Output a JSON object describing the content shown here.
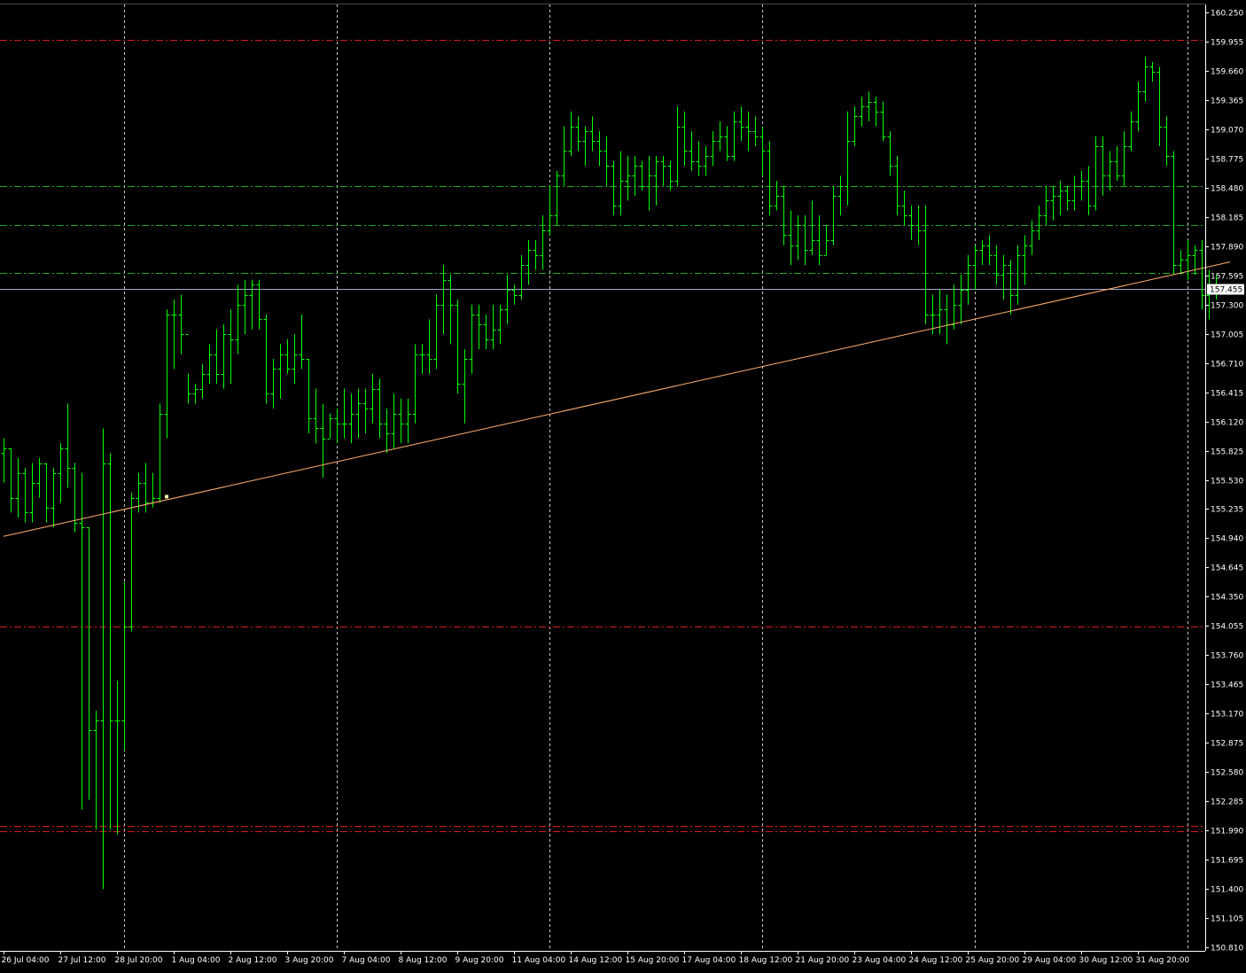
{
  "chart_data": {
    "type": "ohlc-bar",
    "colors": {
      "background": "#000000",
      "bar": "#00ff00",
      "axis": "#ffffff",
      "vertical_grid": "#c8c8c8",
      "support_resistance_red": "#d21e1e",
      "level_green": "#1eaa1e",
      "current_price_line": "#a0a8c8",
      "trendline": "#ffb070"
    },
    "ylim": [
      150.81,
      160.25
    ],
    "y_ticks": [
      "160.250",
      "159.955",
      "159.660",
      "159.365",
      "159.070",
      "158.775",
      "158.480",
      "158.185",
      "157.890",
      "157.595",
      "157.300",
      "157.005",
      "156.710",
      "156.415",
      "156.120",
      "155.825",
      "155.530",
      "155.235",
      "154.940",
      "154.645",
      "154.350",
      "154.055",
      "153.760",
      "153.465",
      "153.170",
      "152.875",
      "152.580",
      "152.285",
      "151.990",
      "151.695",
      "151.400",
      "151.105",
      "150.810"
    ],
    "x_ticks": [
      "26 Jul 04:00",
      "27 Jul 12:00",
      "28 Jul 20:00",
      "1 Aug 04:00",
      "2 Aug 12:00",
      "3 Aug 20:00",
      "7 Aug 04:00",
      "8 Aug 12:00",
      "9 Aug 20:00",
      "11 Aug 04:00",
      "14 Aug 12:00",
      "15 Aug 20:00",
      "17 Aug 04:00",
      "18 Aug 12:00",
      "21 Aug 20:00",
      "23 Aug 04:00",
      "24 Aug 12:00",
      "25 Aug 20:00",
      "29 Aug 04:00",
      "30 Aug 12:00",
      "31 Aug 20:00"
    ],
    "x_tick_bar_index": [
      0,
      8,
      16,
      24,
      32,
      40,
      48,
      56,
      64,
      72,
      80,
      88,
      96,
      104,
      112,
      120,
      128,
      136,
      144,
      152,
      160
    ],
    "vertical_grid_bar_index": [
      17,
      47,
      77,
      107,
      137,
      167
    ],
    "current_price": "157.455",
    "horizontal_levels": [
      {
        "price": 159.97,
        "style": "red-dashdot"
      },
      {
        "price": 154.05,
        "style": "red-dashdot"
      },
      {
        "price": 152.04,
        "style": "red-dashdot"
      },
      {
        "price": 151.98,
        "style": "red-dashdot"
      },
      {
        "price": 158.5,
        "style": "green-dashdot"
      },
      {
        "price": 158.1,
        "style": "green-dashdot"
      },
      {
        "price": 157.62,
        "style": "green-dashdot"
      }
    ],
    "trendline": {
      "start": {
        "bar": 0,
        "price": 154.96
      },
      "end": {
        "bar": 173,
        "price": 157.73
      },
      "anchor": {
        "bar": 23,
        "price": 155.36
      }
    },
    "bars": [
      [
        155.8,
        155.95,
        155.5,
        155.85
      ],
      [
        155.85,
        155.85,
        155.2,
        155.35
      ],
      [
        155.35,
        155.75,
        155.15,
        155.6
      ],
      [
        155.6,
        155.65,
        155.1,
        155.2
      ],
      [
        155.2,
        155.7,
        155.1,
        155.5
      ],
      [
        155.5,
        155.75,
        155.35,
        155.7
      ],
      [
        155.7,
        155.7,
        155.1,
        155.25
      ],
      [
        155.25,
        155.65,
        155.05,
        155.6
      ],
      [
        155.6,
        155.9,
        155.3,
        155.85
      ],
      [
        155.85,
        156.3,
        155.45,
        155.65
      ],
      [
        155.65,
        155.7,
        155.0,
        155.1
      ],
      [
        155.1,
        155.6,
        152.2,
        155.05
      ],
      [
        155.05,
        155.05,
        152.3,
        153.0
      ],
      [
        153.0,
        153.2,
        152.0,
        153.1
      ],
      [
        153.1,
        156.05,
        151.4,
        155.7
      ],
      [
        155.7,
        155.8,
        152.0,
        153.1
      ],
      [
        153.1,
        153.5,
        151.95,
        153.1
      ],
      [
        153.1,
        154.5,
        152.8,
        154.05
      ],
      [
        154.05,
        155.4,
        154.0,
        155.35
      ],
      [
        155.35,
        155.6,
        155.2,
        155.5
      ],
      [
        155.5,
        155.7,
        155.2,
        155.3
      ],
      [
        155.3,
        155.6,
        155.25,
        155.35
      ],
      [
        155.35,
        156.3,
        155.3,
        156.2
      ],
      [
        156.2,
        157.25,
        155.95,
        157.2
      ],
      [
        157.2,
        157.35,
        156.65,
        157.2
      ],
      [
        157.2,
        157.4,
        156.8,
        157.0
      ],
      [
        157.0,
        156.6,
        156.3,
        156.4
      ],
      [
        156.4,
        156.5,
        156.3,
        156.45
      ],
      [
        156.45,
        156.7,
        156.35,
        156.6
      ],
      [
        156.6,
        156.9,
        156.5,
        156.8
      ],
      [
        156.8,
        157.05,
        156.5,
        156.6
      ],
      [
        156.6,
        157.1,
        156.45,
        157.0
      ],
      [
        157.0,
        157.25,
        156.5,
        156.95
      ],
      [
        156.95,
        157.5,
        156.8,
        157.3
      ],
      [
        157.3,
        157.55,
        157.0,
        157.4
      ],
      [
        157.4,
        157.55,
        157.05,
        157.5
      ],
      [
        157.5,
        157.55,
        157.05,
        157.15
      ],
      [
        157.15,
        157.2,
        156.3,
        156.4
      ],
      [
        156.4,
        156.75,
        156.25,
        156.65
      ],
      [
        156.65,
        156.9,
        156.35,
        156.8
      ],
      [
        156.8,
        156.95,
        156.6,
        156.65
      ],
      [
        156.65,
        157.0,
        156.5,
        156.8
      ],
      [
        156.8,
        157.2,
        156.65,
        156.75
      ],
      [
        156.75,
        156.75,
        156.0,
        156.15
      ],
      [
        156.15,
        156.45,
        155.9,
        156.05
      ],
      [
        156.05,
        156.3,
        155.55,
        155.95
      ],
      [
        155.95,
        156.2,
        155.95,
        156.15
      ],
      [
        156.15,
        156.25,
        155.9,
        156.1
      ],
      [
        156.1,
        156.45,
        155.95,
        156.1
      ],
      [
        156.1,
        156.4,
        155.9,
        156.2
      ],
      [
        156.2,
        156.45,
        155.95,
        156.3
      ],
      [
        156.3,
        156.45,
        156.0,
        156.25
      ],
      [
        156.25,
        156.6,
        156.1,
        156.45
      ],
      [
        156.45,
        156.55,
        155.95,
        156.1
      ],
      [
        156.1,
        156.25,
        155.8,
        156.0
      ],
      [
        156.0,
        156.4,
        155.85,
        156.2
      ],
      [
        156.2,
        156.35,
        155.9,
        156.1
      ],
      [
        156.1,
        156.35,
        155.9,
        156.2
      ],
      [
        156.2,
        156.9,
        156.1,
        156.8
      ],
      [
        156.8,
        156.9,
        156.6,
        156.8
      ],
      [
        156.8,
        157.15,
        156.6,
        156.75
      ],
      [
        156.75,
        157.4,
        156.65,
        157.3
      ],
      [
        157.3,
        157.7,
        157.0,
        157.55
      ],
      [
        157.55,
        157.6,
        156.9,
        157.3
      ],
      [
        157.3,
        157.35,
        156.4,
        156.5
      ],
      [
        156.5,
        156.85,
        156.1,
        156.75
      ],
      [
        156.75,
        157.3,
        156.6,
        157.2
      ],
      [
        157.2,
        157.3,
        156.85,
        157.1
      ],
      [
        157.1,
        157.2,
        156.85,
        156.95
      ],
      [
        156.95,
        157.3,
        156.85,
        157.05
      ],
      [
        157.05,
        157.3,
        156.9,
        157.25
      ],
      [
        157.25,
        157.6,
        157.1,
        157.45
      ],
      [
        157.45,
        157.5,
        157.3,
        157.4
      ],
      [
        157.4,
        157.8,
        157.35,
        157.7
      ],
      [
        157.7,
        157.95,
        157.5,
        157.85
      ],
      [
        157.85,
        157.95,
        157.65,
        157.8
      ],
      [
        157.8,
        158.2,
        157.65,
        158.05
      ],
      [
        158.05,
        158.5,
        158.0,
        158.2
      ],
      [
        158.2,
        158.65,
        158.1,
        158.6
      ],
      [
        158.6,
        159.1,
        158.5,
        158.85
      ],
      [
        158.85,
        159.25,
        158.8,
        159.1
      ],
      [
        159.1,
        159.2,
        158.85,
        158.95
      ],
      [
        158.95,
        159.1,
        158.7,
        159.05
      ],
      [
        159.05,
        159.2,
        158.85,
        158.95
      ],
      [
        158.95,
        159.05,
        158.7,
        158.85
      ],
      [
        158.85,
        159.0,
        158.5,
        158.7
      ],
      [
        158.7,
        158.75,
        158.2,
        158.3
      ],
      [
        158.3,
        158.85,
        158.2,
        158.55
      ],
      [
        158.55,
        158.8,
        158.35,
        158.6
      ],
      [
        158.6,
        158.8,
        158.4,
        158.7
      ],
      [
        158.7,
        158.75,
        158.45,
        158.5
      ],
      [
        158.5,
        158.8,
        158.25,
        158.6
      ],
      [
        158.6,
        158.8,
        158.3,
        158.75
      ],
      [
        158.75,
        158.8,
        158.5,
        158.7
      ],
      [
        158.7,
        158.75,
        158.45,
        158.55
      ],
      [
        158.55,
        159.3,
        158.5,
        159.1
      ],
      [
        159.1,
        159.25,
        158.7,
        158.85
      ],
      [
        158.85,
        159.05,
        158.65,
        158.75
      ],
      [
        158.75,
        158.95,
        158.6,
        158.7
      ],
      [
        158.7,
        158.9,
        158.6,
        158.8
      ],
      [
        158.8,
        159.05,
        158.7,
        158.95
      ],
      [
        158.95,
        159.15,
        158.85,
        159.0
      ],
      [
        159.0,
        159.1,
        158.75,
        158.8
      ],
      [
        158.8,
        159.25,
        158.75,
        159.15
      ],
      [
        159.15,
        159.3,
        158.95,
        159.1
      ],
      [
        159.1,
        159.25,
        158.85,
        159.05
      ],
      [
        159.05,
        159.2,
        158.9,
        159.0
      ],
      [
        159.0,
        159.1,
        158.6,
        158.85
      ],
      [
        158.85,
        158.95,
        158.2,
        158.3
      ],
      [
        158.3,
        158.55,
        158.25,
        158.4
      ],
      [
        158.4,
        158.5,
        157.9,
        158.0
      ],
      [
        158.0,
        158.25,
        157.7,
        157.9
      ],
      [
        157.9,
        158.2,
        157.75,
        158.1
      ],
      [
        158.1,
        158.2,
        157.7,
        157.85
      ],
      [
        157.85,
        158.35,
        157.8,
        157.95
      ],
      [
        157.95,
        158.2,
        157.7,
        157.8
      ],
      [
        157.8,
        158.1,
        157.8,
        157.95
      ],
      [
        157.95,
        158.5,
        157.9,
        158.4
      ],
      [
        158.4,
        158.6,
        158.2,
        158.5
      ],
      [
        158.5,
        159.25,
        158.3,
        158.95
      ],
      [
        158.95,
        159.3,
        158.9,
        159.2
      ],
      [
        159.2,
        159.4,
        159.1,
        159.3
      ],
      [
        159.3,
        159.45,
        159.15,
        159.35
      ],
      [
        159.35,
        159.4,
        159.1,
        159.25
      ],
      [
        159.25,
        159.35,
        158.95,
        159.0
      ],
      [
        159.0,
        159.05,
        158.6,
        158.7
      ],
      [
        158.7,
        158.8,
        158.2,
        158.3
      ],
      [
        158.3,
        158.45,
        158.1,
        158.2
      ],
      [
        158.2,
        158.3,
        157.95,
        158.1
      ],
      [
        158.1,
        158.3,
        157.9,
        158.05
      ],
      [
        158.05,
        158.3,
        157.1,
        157.2
      ],
      [
        157.2,
        157.4,
        157.0,
        157.2
      ],
      [
        157.2,
        157.45,
        157.0,
        157.25
      ],
      [
        157.25,
        157.4,
        156.9,
        157.1
      ],
      [
        157.1,
        157.5,
        157.05,
        157.3
      ],
      [
        157.3,
        157.6,
        157.1,
        157.45
      ],
      [
        157.45,
        157.8,
        157.3,
        157.7
      ],
      [
        157.7,
        157.9,
        157.45,
        157.85
      ],
      [
        157.85,
        157.95,
        157.7,
        157.9
      ],
      [
        157.9,
        158.0,
        157.7,
        157.8
      ],
      [
        157.8,
        157.9,
        157.5,
        157.6
      ],
      [
        157.6,
        157.8,
        157.35,
        157.7
      ],
      [
        157.7,
        157.75,
        157.2,
        157.4
      ],
      [
        157.4,
        157.9,
        157.3,
        157.8
      ],
      [
        157.8,
        158.0,
        157.5,
        157.9
      ],
      [
        157.9,
        158.15,
        157.8,
        158.05
      ],
      [
        158.05,
        158.3,
        157.95,
        158.2
      ],
      [
        158.2,
        158.5,
        158.1,
        158.35
      ],
      [
        158.35,
        158.5,
        158.15,
        158.4
      ],
      [
        158.4,
        158.55,
        158.2,
        158.45
      ],
      [
        158.45,
        158.5,
        158.25,
        158.35
      ],
      [
        158.35,
        158.6,
        158.25,
        158.5
      ],
      [
        158.5,
        158.65,
        158.35,
        158.55
      ],
      [
        158.55,
        158.7,
        158.2,
        158.3
      ],
      [
        158.3,
        159.0,
        158.25,
        158.9
      ],
      [
        158.9,
        159.0,
        158.4,
        158.6
      ],
      [
        158.6,
        158.85,
        158.45,
        158.75
      ],
      [
        158.75,
        158.9,
        158.55,
        158.6
      ],
      [
        158.6,
        159.05,
        158.5,
        158.9
      ],
      [
        158.9,
        159.25,
        158.85,
        159.15
      ],
      [
        159.15,
        159.55,
        159.05,
        159.45
      ],
      [
        159.45,
        159.8,
        159.35,
        159.7
      ],
      [
        159.7,
        159.75,
        159.55,
        159.65
      ],
      [
        159.65,
        159.7,
        158.9,
        159.1
      ],
      [
        159.1,
        159.2,
        158.7,
        158.8
      ],
      [
        158.8,
        158.85,
        157.6,
        157.7
      ],
      [
        157.7,
        157.85,
        157.6,
        157.75
      ],
      [
        157.75,
        157.95,
        157.55,
        157.8
      ],
      [
        157.8,
        157.9,
        157.6,
        157.85
      ],
      [
        157.85,
        157.95,
        157.25,
        157.4
      ],
      [
        157.4,
        157.65,
        157.15,
        157.5
      ],
      [
        157.5,
        157.6,
        157.35,
        157.455
      ]
    ]
  }
}
